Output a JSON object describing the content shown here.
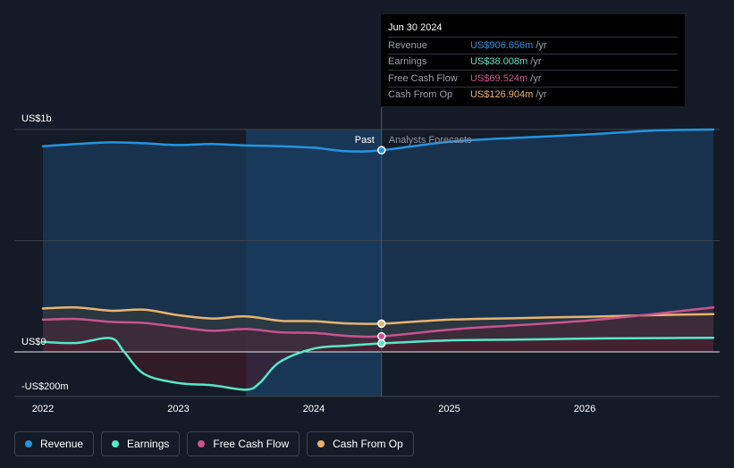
{
  "chart_data": {
    "type": "line",
    "title": "",
    "xlabel": "",
    "ylabel": "",
    "x_ticks": [
      "2022",
      "2023",
      "2024",
      "2025",
      "2026"
    ],
    "xlim": [
      2021.85,
      2026.95
    ],
    "ylim": [
      -200,
      1000
    ],
    "y_tick_labels": [
      {
        "value": 1000,
        "label": "US$1b"
      },
      {
        "value": 0,
        "label": "US$0"
      },
      {
        "value": -200,
        "label": "-US$200m"
      }
    ],
    "gridlines_y": [
      1000,
      500,
      0,
      -200
    ],
    "divider_x": 2024.5,
    "past_label": "Past",
    "forecast_label": "Analysts Forecasts",
    "highlight_start": 2023.5,
    "series": [
      {
        "name": "Revenue",
        "color": "#2394df",
        "x": [
          2022.0,
          2022.25,
          2022.5,
          2022.75,
          2023.0,
          2023.25,
          2023.5,
          2023.75,
          2024.0,
          2024.25,
          2024.5,
          2025.0,
          2025.5,
          2026.0,
          2026.5,
          2026.95
        ],
        "y": [
          925,
          935,
          942,
          938,
          930,
          935,
          928,
          925,
          918,
          902,
          907,
          945,
          963,
          977,
          995,
          1000
        ]
      },
      {
        "name": "Earnings",
        "color": "#57e6c7",
        "x": [
          2022.0,
          2022.25,
          2022.5,
          2022.6,
          2022.75,
          2023.0,
          2023.25,
          2023.5,
          2023.6,
          2023.75,
          2024.0,
          2024.25,
          2024.5,
          2025.0,
          2025.5,
          2026.0,
          2026.5,
          2026.95
        ],
        "y": [
          45,
          40,
          62,
          0,
          -100,
          -140,
          -150,
          -170,
          -140,
          -45,
          15,
          28,
          38,
          52,
          55,
          60,
          62,
          63
        ]
      },
      {
        "name": "Free Cash Flow",
        "color": "#c9538d",
        "x": [
          2022.0,
          2022.25,
          2022.5,
          2022.75,
          2023.0,
          2023.25,
          2023.5,
          2023.75,
          2024.0,
          2024.25,
          2024.5,
          2025.0,
          2025.5,
          2026.0,
          2026.5,
          2026.95
        ],
        "y": [
          145,
          148,
          135,
          130,
          112,
          95,
          103,
          88,
          85,
          72,
          70,
          100,
          120,
          140,
          170,
          200
        ]
      },
      {
        "name": "Cash From Op",
        "color": "#e9b36d",
        "x": [
          2022.0,
          2022.25,
          2022.5,
          2022.75,
          2023.0,
          2023.25,
          2023.5,
          2023.75,
          2024.0,
          2024.25,
          2024.5,
          2025.0,
          2025.5,
          2026.0,
          2026.5,
          2026.95
        ],
        "y": [
          195,
          200,
          185,
          190,
          165,
          150,
          160,
          140,
          138,
          128,
          127,
          145,
          152,
          158,
          165,
          170
        ]
      }
    ]
  },
  "tooltip": {
    "date": "Jun 30 2024",
    "unit": "/yr",
    "rows": [
      {
        "name": "Revenue",
        "value": "US$906.656m",
        "color": "#2394df"
      },
      {
        "name": "Earnings",
        "value": "US$38.008m",
        "color": "#57e6c7"
      },
      {
        "name": "Free Cash Flow",
        "value": "US$69.524m",
        "color": "#c9538d"
      },
      {
        "name": "Cash From Op",
        "value": "US$126.904m",
        "color": "#e9b36d"
      }
    ]
  },
  "legend": [
    {
      "name": "Revenue",
      "color": "#2394df"
    },
    {
      "name": "Earnings",
      "color": "#57e6c7"
    },
    {
      "name": "Free Cash Flow",
      "color": "#c9538d"
    },
    {
      "name": "Cash From Op",
      "color": "#e9b36d"
    }
  ]
}
